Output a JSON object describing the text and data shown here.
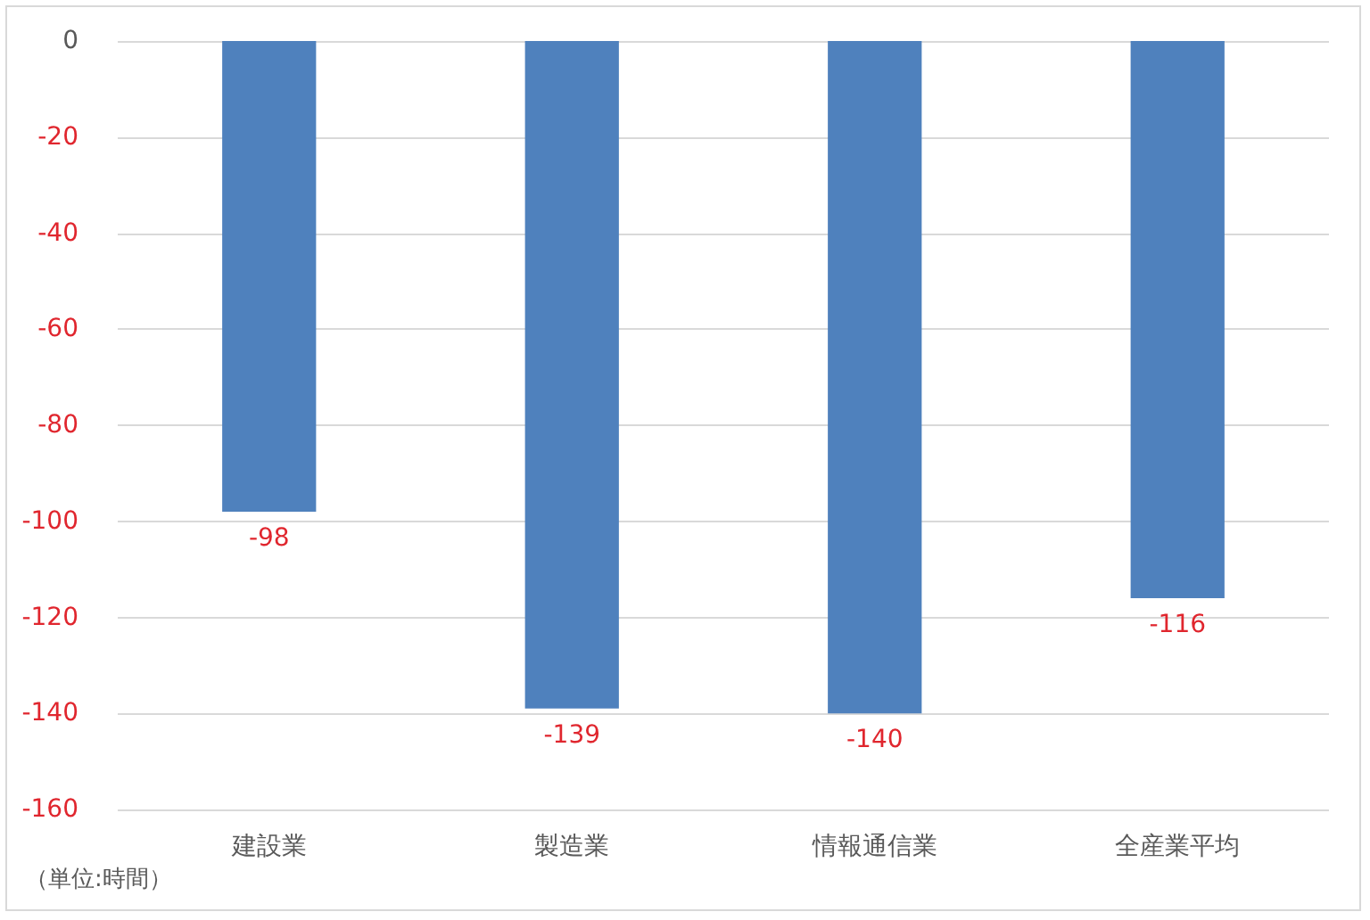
{
  "chart_data": {
    "type": "bar",
    "categories": [
      "建設業",
      "製造業",
      "情報通信業",
      "全産業平均"
    ],
    "values": [
      -98,
      -139,
      -140,
      -116
    ],
    "color": "#4f81bd",
    "ylim": [
      -160,
      0
    ],
    "yticks": [
      -160,
      -140,
      -120,
      -100,
      -80,
      -60,
      -40,
      -20,
      0
    ],
    "grid": "y",
    "data_labels": true,
    "annotations": [
      "（単位:時間）"
    ]
  }
}
